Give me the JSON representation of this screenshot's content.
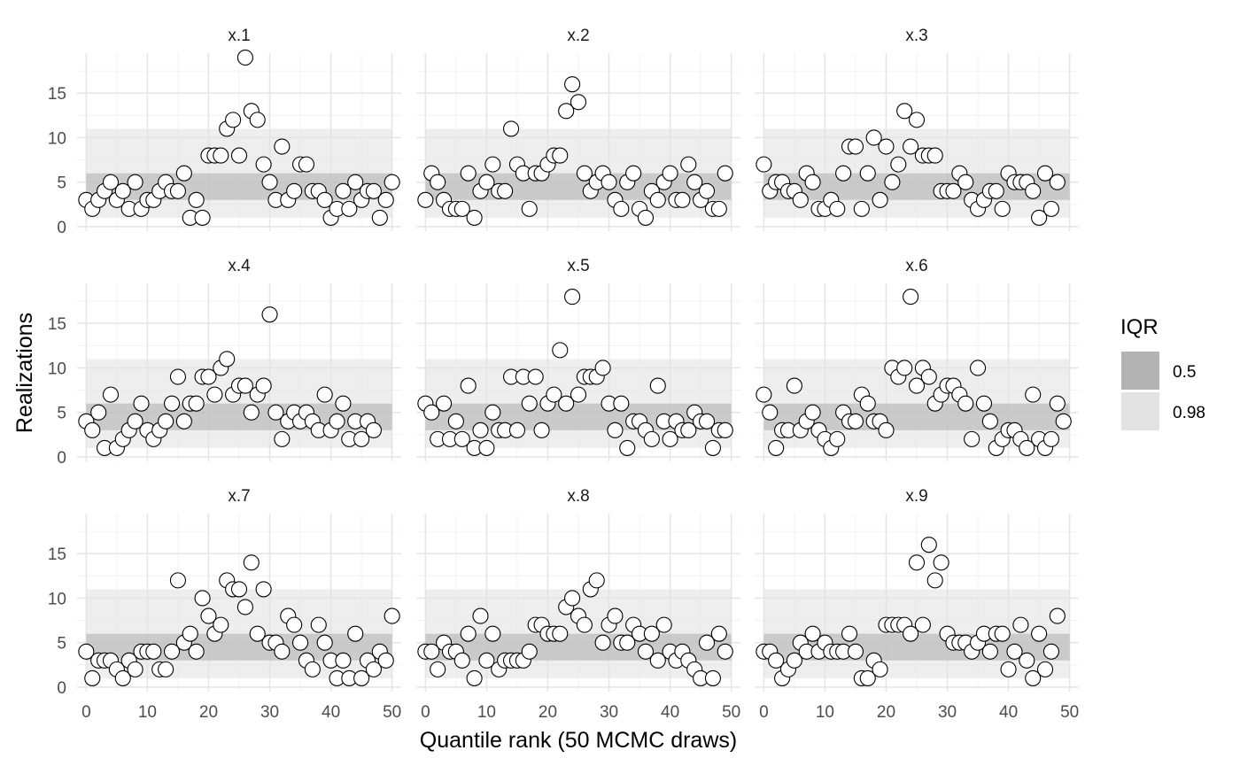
{
  "chart_data": {
    "type": "scatter",
    "facet_layout": "3x3",
    "xlabel": "Quantile rank (50 MCMC draws)",
    "ylabel": "Realizations",
    "xlim": [
      -1.5,
      51.5
    ],
    "ylim": [
      -0.5,
      19.5
    ],
    "x_ticks": [
      0,
      10,
      20,
      30,
      40,
      50
    ],
    "y_ticks": [
      0,
      5,
      10,
      15
    ],
    "grid": true,
    "bands": {
      "title": "IQR",
      "legend_position": "right",
      "items": [
        {
          "label": "0.5",
          "lower": 3,
          "upper": 6,
          "color": "#b3b3b3"
        },
        {
          "label": "0.98",
          "lower": 1,
          "upper": 11,
          "color": "#e3e3e3"
        }
      ]
    },
    "panels": [
      {
        "name": "x.1",
        "values": [
          3,
          2,
          3,
          4,
          5,
          3,
          4,
          2,
          5,
          2,
          3,
          3,
          4,
          5,
          4,
          4,
          6,
          1,
          3,
          1,
          8,
          8,
          8,
          11,
          12,
          8,
          19,
          13,
          12,
          7,
          5,
          3,
          9,
          3,
          4,
          7,
          7,
          4,
          4,
          3,
          1,
          2,
          4,
          2,
          5,
          3,
          4,
          4,
          1,
          3,
          5
        ]
      },
      {
        "name": "x.2",
        "values": [
          3,
          6,
          5,
          3,
          2,
          2,
          2,
          6,
          1,
          4,
          5,
          7,
          4,
          4,
          11,
          7,
          6,
          2,
          6,
          6,
          7,
          8,
          8,
          13,
          16,
          14,
          6,
          4,
          5,
          6,
          5,
          3,
          2,
          5,
          6,
          2,
          1,
          4,
          3,
          5,
          6,
          3,
          3,
          7,
          5,
          3,
          4,
          2,
          2,
          6
        ]
      },
      {
        "name": "x.3",
        "values": [
          7,
          4,
          5,
          5,
          4,
          4,
          3,
          6,
          5,
          2,
          2,
          3,
          2,
          6,
          9,
          9,
          2,
          6,
          10,
          3,
          9,
          5,
          7,
          13,
          9,
          12,
          8,
          8,
          8,
          4,
          4,
          4,
          6,
          5,
          3,
          2,
          3,
          4,
          4,
          2,
          6,
          5,
          5,
          5,
          4,
          1,
          6,
          2,
          5
        ]
      },
      {
        "name": "x.4",
        "values": [
          4,
          3,
          5,
          1,
          7,
          1,
          2,
          3,
          4,
          6,
          3,
          2,
          3,
          4,
          6,
          9,
          4,
          6,
          6,
          9,
          9,
          7,
          10,
          11,
          7,
          8,
          8,
          5,
          7,
          8,
          16,
          5,
          2,
          4,
          5,
          4,
          5,
          4,
          3,
          7,
          3,
          4,
          6,
          2,
          4,
          2,
          4,
          3
        ]
      },
      {
        "name": "x.5",
        "values": [
          6,
          5,
          2,
          6,
          2,
          4,
          2,
          8,
          1,
          3,
          1,
          5,
          3,
          3,
          9,
          3,
          9,
          6,
          9,
          3,
          6,
          7,
          12,
          6,
          18,
          7,
          9,
          9,
          9,
          10,
          6,
          3,
          6,
          1,
          4,
          4,
          3,
          2,
          8,
          4,
          2,
          4,
          3,
          3,
          5,
          4,
          4,
          1,
          3,
          3
        ]
      },
      {
        "name": "x.6",
        "values": [
          7,
          5,
          1,
          3,
          3,
          8,
          3,
          4,
          5,
          3,
          2,
          1,
          2,
          5,
          4,
          4,
          7,
          6,
          4,
          4,
          3,
          10,
          9,
          10,
          18,
          8,
          10,
          9,
          6,
          7,
          8,
          8,
          7,
          6,
          2,
          10,
          6,
          4,
          1,
          2,
          3,
          3,
          2,
          1,
          7,
          2,
          1,
          2,
          6,
          4
        ]
      },
      {
        "name": "x.7",
        "values": [
          4,
          1,
          3,
          3,
          3,
          2,
          1,
          3,
          2,
          4,
          4,
          4,
          2,
          2,
          4,
          12,
          5,
          6,
          4,
          10,
          8,
          6,
          7,
          12,
          11,
          11,
          9,
          14,
          6,
          11,
          5,
          5,
          4,
          8,
          7,
          5,
          3,
          2,
          7,
          5,
          3,
          1,
          3,
          1,
          6,
          1,
          3,
          2,
          4,
          3,
          8
        ]
      },
      {
        "name": "x.8",
        "values": [
          4,
          4,
          2,
          5,
          4,
          4,
          3,
          6,
          1,
          8,
          3,
          6,
          2,
          3,
          3,
          3,
          3,
          4,
          7,
          7,
          6,
          6,
          6,
          9,
          10,
          8,
          7,
          11,
          12,
          5,
          7,
          8,
          5,
          5,
          7,
          6,
          4,
          6,
          3,
          7,
          4,
          3,
          4,
          3,
          2,
          1,
          5,
          1,
          6,
          4
        ]
      },
      {
        "name": "x.9",
        "values": [
          4,
          4,
          3,
          1,
          2,
          3,
          5,
          4,
          6,
          4,
          5,
          4,
          4,
          4,
          6,
          4,
          1,
          1,
          3,
          2,
          7,
          7,
          7,
          7,
          6,
          14,
          7,
          16,
          12,
          14,
          6,
          5,
          5,
          5,
          4,
          5,
          6,
          4,
          6,
          6,
          2,
          4,
          7,
          3,
          1,
          6,
          2,
          4,
          8
        ]
      }
    ]
  }
}
